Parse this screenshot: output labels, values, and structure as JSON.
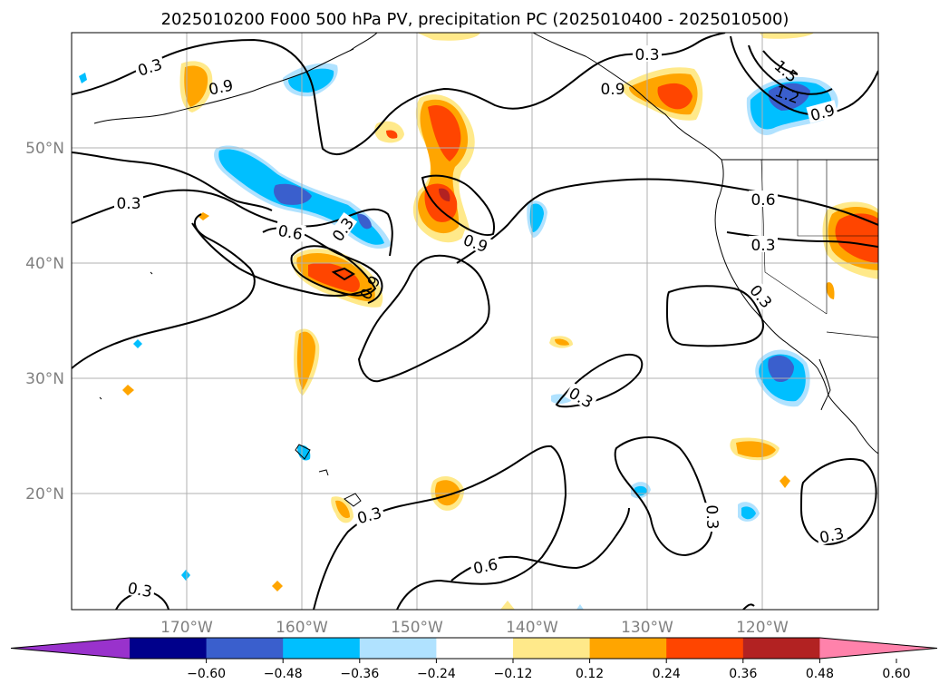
{
  "title": "2025010200 F000 500 hPa PV, precipitation PC (2025010400 - 2025010500)",
  "map": {
    "lon_labels": [
      "170°W",
      "160°W",
      "150°W",
      "140°W",
      "130°W",
      "120°W"
    ],
    "lat_labels": [
      "50°N",
      "40°N",
      "30°N",
      "20°N"
    ],
    "gridline_color": "#b0b0b0",
    "contour_color": "#000000"
  },
  "contour_labels": [
    "0.3",
    "0.9",
    "0.3",
    "1.5",
    "1.2",
    "0.9",
    "0.9",
    "0.3",
    "0.6",
    "0.3",
    "0.9",
    "0.6",
    "0.3",
    "0.9",
    "0.3",
    "0.3",
    "0.3",
    "0.6",
    "0.3",
    "0.3"
  ],
  "colorbar": {
    "ticks": [
      "−0.60",
      "−0.48",
      "−0.36",
      "−0.24",
      "−0.12",
      "0.12",
      "0.24",
      "0.36",
      "0.48",
      "0.60"
    ],
    "colors": [
      "#9932cc",
      "#00008b",
      "#3a5fcd",
      "#00bfff",
      "#b0e2ff",
      "#ffffff",
      "#ffe98a",
      "#ffa500",
      "#ff4500",
      "#b22222",
      "#ff82ab"
    ]
  }
}
